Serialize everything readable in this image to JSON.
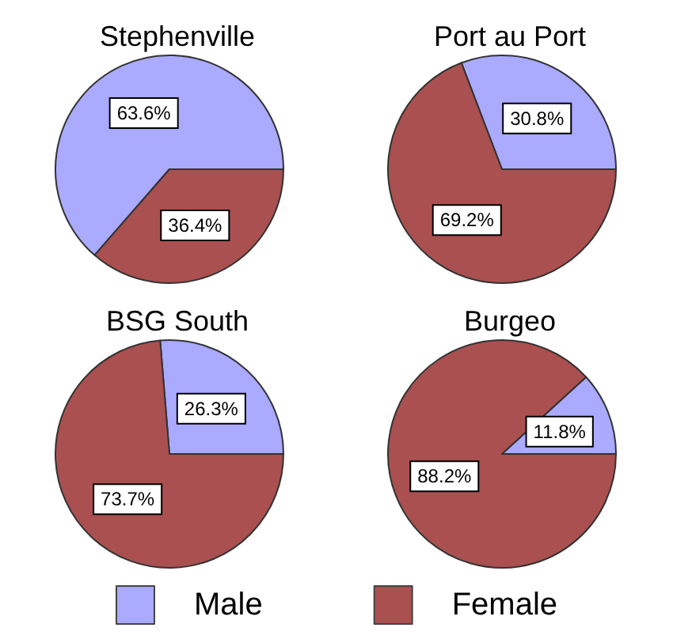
{
  "chart_data": [
    {
      "type": "pie",
      "title": "Stephenville",
      "categories": [
        "Male",
        "Female"
      ],
      "values": [
        63.6,
        36.4
      ],
      "value_labels": [
        "63.6%",
        "36.4%"
      ],
      "colors": [
        "#aaaaff",
        "#aa5050"
      ],
      "legend": "bottom"
    },
    {
      "type": "pie",
      "title": "Port au Port",
      "categories": [
        null,
        null
      ],
      "values": [
        30.8,
        69.2
      ],
      "value_labels": [
        "30.8%",
        "69.2%"
      ],
      "colors": [
        "#aaaaff",
        "#aa5050"
      ]
    },
    {
      "type": "pie",
      "title": "BSG South",
      "categories": [
        null,
        null
      ],
      "values": [
        26.3,
        73.7
      ],
      "value_labels": [
        "26.3%",
        "73.7%"
      ],
      "colors": [
        "#aaaaff",
        "#aa5050"
      ]
    },
    {
      "type": "pie",
      "title": "Burgeo",
      "categories": [
        null,
        null
      ],
      "values": [
        11.8,
        88.2
      ],
      "value_labels": [
        "11.8%",
        "88.2%"
      ],
      "colors": [
        "#aaaaff",
        "#aa5050"
      ]
    }
  ]
}
